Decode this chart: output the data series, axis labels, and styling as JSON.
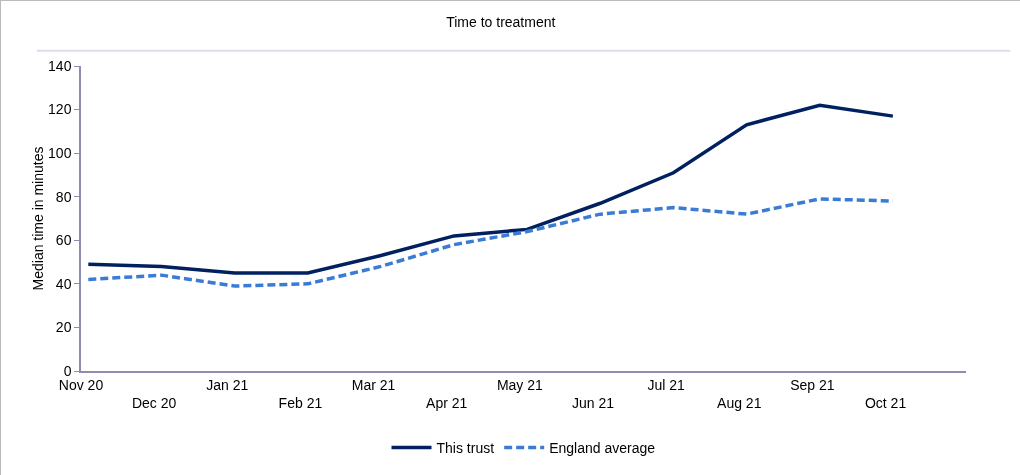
{
  "chart_data": {
    "type": "line",
    "title": "Time to treatment",
    "ylabel": "Median time in minutes",
    "categories": [
      "Nov 20",
      "Dec 20",
      "Jan 21",
      "Feb 21",
      "Mar 21",
      "Apr 21",
      "May 21",
      "Jun 21",
      "Jul 21",
      "Aug 21",
      "Sep 21",
      "Oct 21"
    ],
    "series": [
      {
        "name": "This trust",
        "color": "#002060",
        "line_style": "solid",
        "values": [
          49,
          48,
          45,
          45,
          53,
          62,
          65,
          77,
          91,
          113,
          122,
          117
        ]
      },
      {
        "name": "England average",
        "color": "#3a7bd5",
        "line_style": "dashed",
        "values": [
          42,
          44,
          39,
          40,
          48,
          58,
          64,
          72,
          75,
          72,
          79,
          78
        ]
      }
    ],
    "ylim": [
      0,
      140
    ],
    "yticks": [
      0,
      20,
      40,
      60,
      80,
      100,
      120,
      140
    ],
    "grid": false,
    "legend": "bottom",
    "marker": "none"
  }
}
